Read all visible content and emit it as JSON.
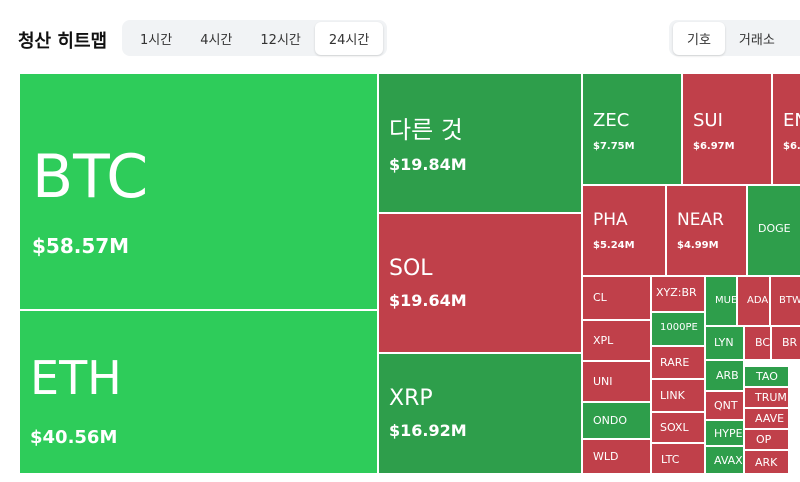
{
  "header": {
    "title": "청산 히트맵",
    "tabs": [
      "1시간",
      "4시간",
      "12시간",
      "24시간"
    ],
    "active_tab": 3,
    "toggles": [
      "기호",
      "거래소"
    ],
    "active_toggle": 0
  },
  "tiles": [
    {
      "label": "BTC",
      "value": "$58.57M",
      "color": "#2ecc5a"
    },
    {
      "label": "ETH",
      "value": "$40.56M",
      "color": "#2ecc5a"
    },
    {
      "label": "다른 것",
      "value": "$19.84M",
      "color": "#2e9e4b"
    },
    {
      "label": "SOL",
      "value": "$19.64M",
      "color": "#c0404a"
    },
    {
      "label": "XRP",
      "value": "$16.92M",
      "color": "#2e9e4b"
    },
    {
      "label": "ZEC",
      "value": "$7.75M",
      "color": "#2e9e4b"
    },
    {
      "label": "SUI",
      "value": "$6.97M",
      "color": "#c0404a"
    },
    {
      "label": "EN",
      "value": "$6.",
      "color": "#c0404a"
    },
    {
      "label": "PHA",
      "value": "$5.24M",
      "color": "#c0404a"
    },
    {
      "label": "NEAR",
      "value": "$4.99M",
      "color": "#c0404a"
    },
    {
      "label": "DOGE",
      "color": "#2e9e4b"
    },
    {
      "label": "CL",
      "color": "#c0404a"
    },
    {
      "label": "XYZ:BR",
      "color": "#c0404a"
    },
    {
      "label": "MUE",
      "color": "#2e9e4b"
    },
    {
      "label": "ADA",
      "color": "#c0404a"
    },
    {
      "label": "BTW",
      "color": "#c0404a"
    },
    {
      "label": "1000PE",
      "color": "#2e9e4b"
    },
    {
      "label": "XPL",
      "color": "#c0404a"
    },
    {
      "label": "LYN",
      "color": "#2e9e4b"
    },
    {
      "label": "BCI",
      "color": "#c0404a"
    },
    {
      "label": "BR",
      "color": "#c0404a"
    },
    {
      "label": "RARE",
      "color": "#c0404a"
    },
    {
      "label": "ARB",
      "color": "#2e9e4b"
    },
    {
      "label": "UNI",
      "color": "#c0404a"
    },
    {
      "label": "TAO",
      "color": "#2e9e4b"
    },
    {
      "label": "LINK",
      "color": "#c0404a"
    },
    {
      "label": "QNT",
      "color": "#c0404a"
    },
    {
      "label": "TRUM",
      "color": "#c0404a"
    },
    {
      "label": "ONDO",
      "color": "#2e9e4b"
    },
    {
      "label": "SOXL",
      "color": "#c0404a"
    },
    {
      "label": "AAVE",
      "color": "#c0404a"
    },
    {
      "label": "HYPE",
      "color": "#2e9e4b"
    },
    {
      "label": "OP",
      "color": "#c0404a"
    },
    {
      "label": "WLD",
      "color": "#c0404a"
    },
    {
      "label": "LTC",
      "color": "#c0404a"
    },
    {
      "label": "AVAX",
      "color": "#2e9e4b"
    },
    {
      "label": "ARK",
      "color": "#c0404a"
    }
  ]
}
